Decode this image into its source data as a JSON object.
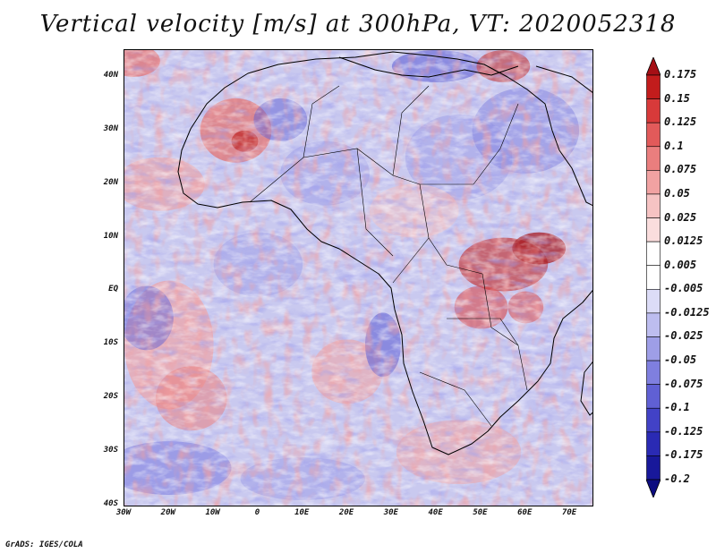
{
  "title": "Vertical velocity [m/s] at 300hPa, VT: 2020052318",
  "footer": "GrADS: IGES/COLA",
  "axes": {
    "y_labels": [
      "40N",
      "30N",
      "20N",
      "10N",
      "EQ",
      "10S",
      "20S",
      "30S",
      "40S"
    ],
    "y_values": [
      40,
      30,
      20,
      10,
      0,
      -10,
      -20,
      -30,
      -40
    ],
    "x_labels": [
      "30W",
      "20W",
      "10W",
      "0",
      "10E",
      "20E",
      "30E",
      "40E",
      "50E",
      "60E",
      "70E"
    ],
    "x_values": [
      -30,
      -20,
      -10,
      0,
      10,
      20,
      30,
      40,
      50,
      60,
      70
    ],
    "lon_range": [
      -30,
      75
    ],
    "lat_range": [
      -40,
      45
    ]
  },
  "colorbar": {
    "labels": [
      "0.175",
      "0.15",
      "0.125",
      "0.1",
      "0.075",
      "0.05",
      "0.025",
      "0.0125",
      "0.005",
      "-0.005",
      "-0.0125",
      "-0.025",
      "-0.05",
      "-0.075",
      "-0.1",
      "-0.125",
      "-0.175",
      "-0.2"
    ],
    "colors": [
      "#a50f15",
      "#c21c1c",
      "#d83a3a",
      "#e25a5a",
      "#ea7e7e",
      "#f1a2a2",
      "#f6c3c3",
      "#fadddd",
      "#ffffff",
      "#ffffff",
      "#dcdcf7",
      "#bdbdef",
      "#9e9ee7",
      "#7f7fdf",
      "#6060d4",
      "#4242c6",
      "#2a2ab4",
      "#18189a",
      "#0c0c80"
    ]
  }
}
